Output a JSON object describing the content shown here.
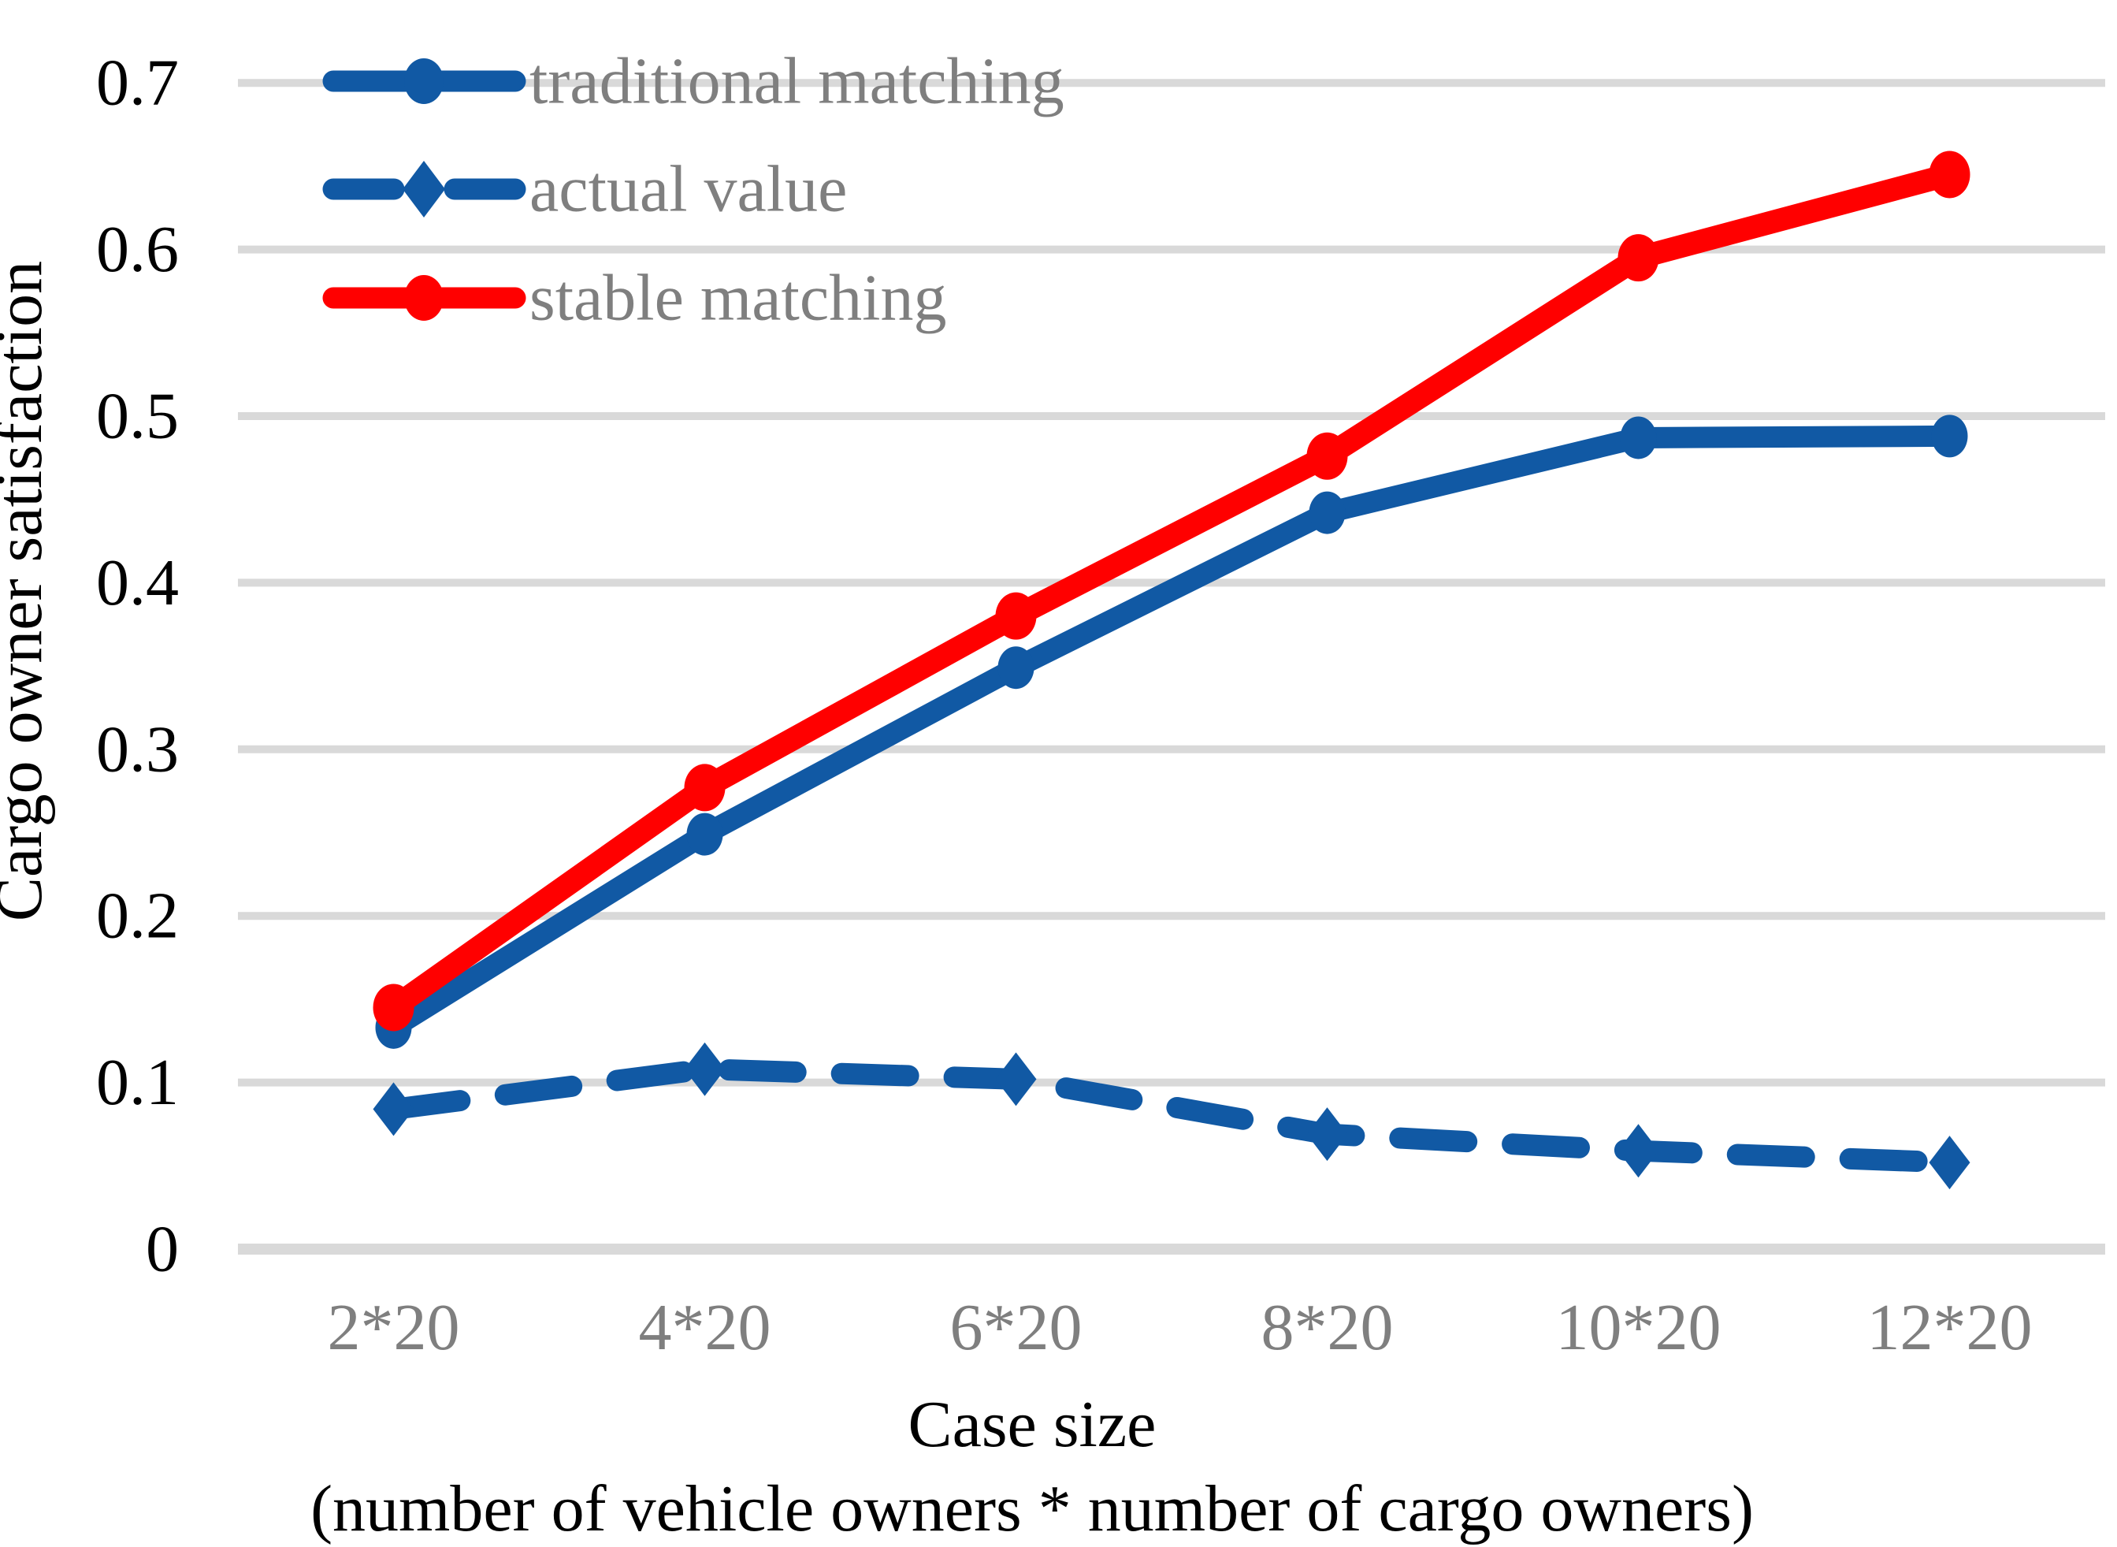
{
  "chart_data": {
    "type": "line",
    "title": "",
    "xlabel_line1": "Case size",
    "xlabel_line2": "(number of vehicle owners * number of cargo owners)",
    "ylabel": "Cargo owner satisfaction",
    "categories": [
      "2*20",
      "4*20",
      "6*20",
      "8*20",
      "10*20",
      "12*20"
    ],
    "series": [
      {
        "name": "traditional matching",
        "values": [
          0.133,
          0.249,
          0.349,
          0.442,
          0.487,
          0.488
        ],
        "color": "#1159A4",
        "line": "solid",
        "marker": "circle"
      },
      {
        "name": "actual value",
        "values": [
          0.084,
          0.108,
          0.102,
          0.069,
          0.059,
          0.052
        ],
        "color": "#1159A4",
        "line": "dashed",
        "marker": "diamond"
      },
      {
        "name": "stable matching",
        "values": [
          0.145,
          0.277,
          0.38,
          0.476,
          0.595,
          0.645
        ],
        "color": "#FF0000",
        "line": "solid",
        "marker": "circle"
      }
    ],
    "y_ticks": [
      "0",
      "0.1",
      "0.2",
      "0.3",
      "0.4",
      "0.5",
      "0.6",
      "0.7"
    ],
    "ylim": [
      0,
      0.7
    ],
    "y_step": 0.1,
    "grid": true,
    "legend_position": "top-left",
    "colors": {
      "grid": "#D9D9D9",
      "x_tick_label": "#7F7F7F",
      "y_tick_label": "#000000",
      "legend_text": "#7F7F7F",
      "axis_title": "#000000",
      "background": "#FFFFFF"
    }
  }
}
